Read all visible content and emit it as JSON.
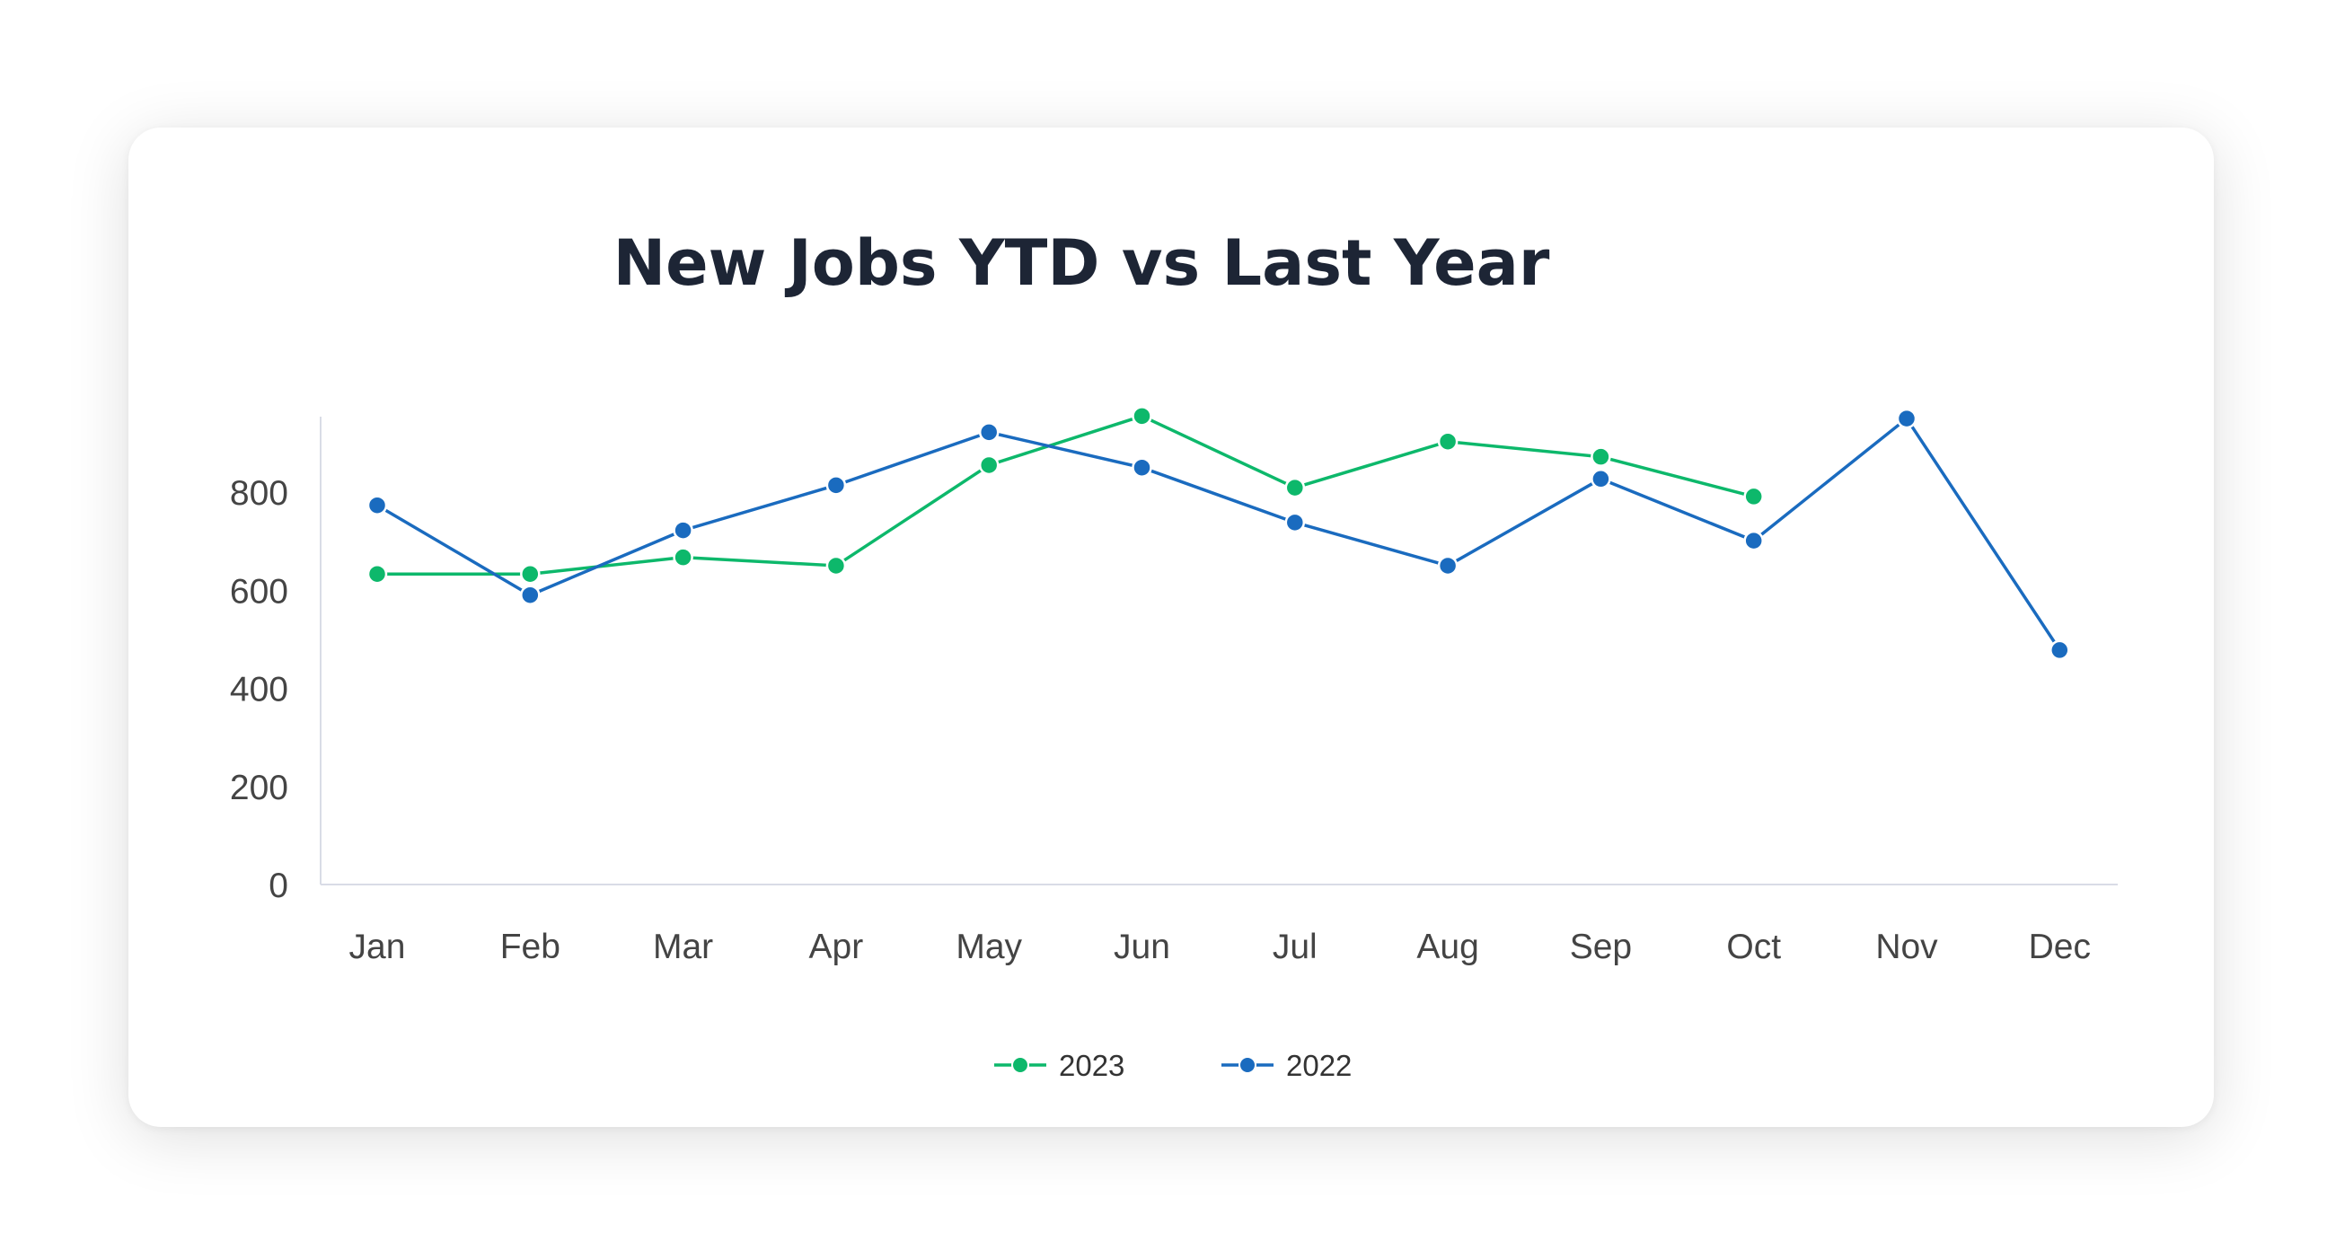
{
  "chart_data": {
    "type": "line",
    "title": "New Jobs YTD vs Last Year",
    "categories": [
      "Jan",
      "Feb",
      "Mar",
      "Apr",
      "May",
      "Jun",
      "Jul",
      "Aug",
      "Sep",
      "Oct",
      "Nov",
      "Dec"
    ],
    "y_ticks": [
      "0",
      "200",
      "400",
      "600",
      "800"
    ],
    "ylim": [
      0,
      950
    ],
    "grid": false,
    "legend_position": "bottom",
    "series": [
      {
        "name": "2023",
        "color": "#0db86b",
        "values": [
          633,
          633,
          667,
          650,
          855,
          955,
          809,
          903,
          872,
          791,
          null,
          null
        ]
      },
      {
        "name": "2022",
        "color": "#1a6bbf",
        "values": [
          773,
          590,
          722,
          814,
          922,
          850,
          738,
          650,
          827,
          701,
          950,
          478
        ]
      }
    ]
  }
}
